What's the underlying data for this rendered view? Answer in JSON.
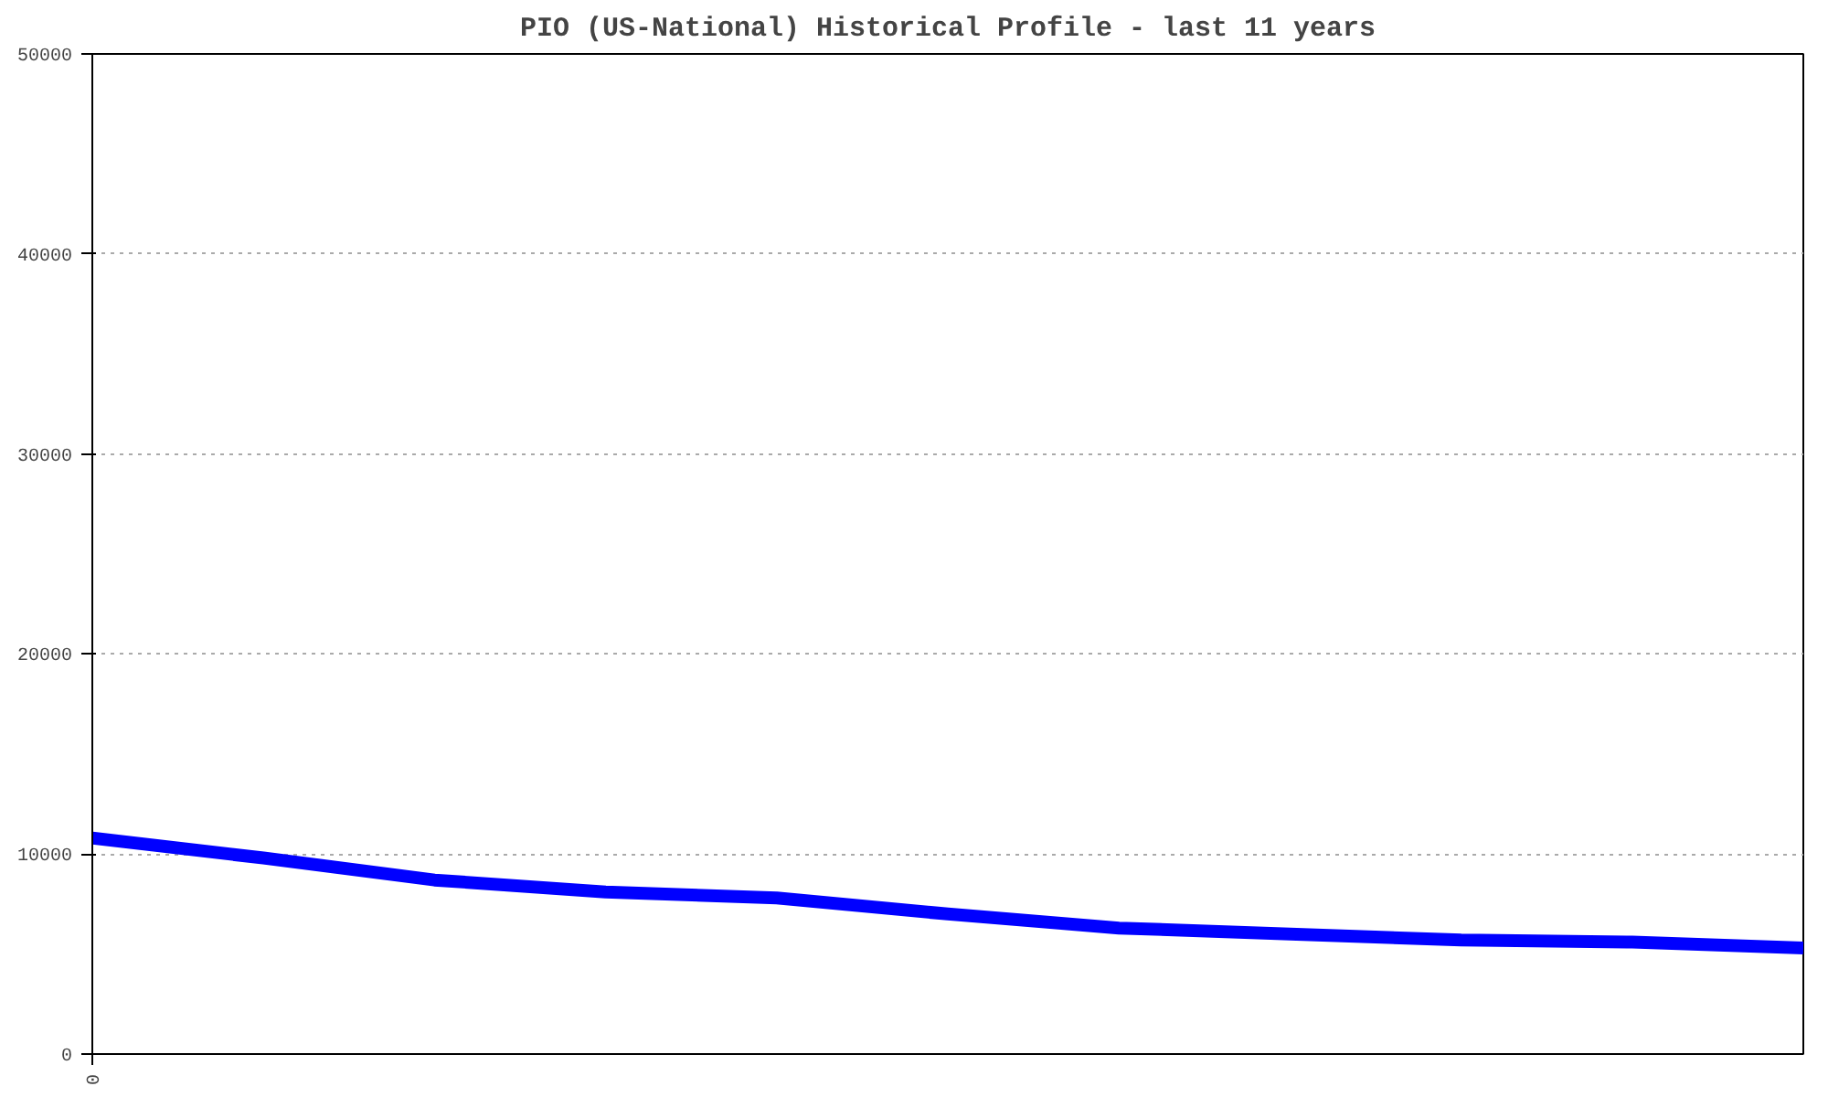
{
  "chart_data": {
    "type": "line",
    "title": "PIO (US-National) Historical Profile - last 11 years",
    "categories": [
      "0",
      null,
      null,
      null,
      null,
      null,
      null,
      null,
      null,
      null,
      null
    ],
    "series": [
      {
        "color": "#0000ff",
        "values": [
          10800,
          9800,
          8700,
          8100,
          7800,
          7000,
          6300,
          6000,
          5700,
          5600,
          5300
        ]
      }
    ],
    "ylim": [
      0,
      50000
    ],
    "yticks": [
      0,
      10000,
      20000,
      30000,
      40000,
      50000
    ],
    "grid": "y",
    "marker": "none",
    "line_style": "solid"
  }
}
